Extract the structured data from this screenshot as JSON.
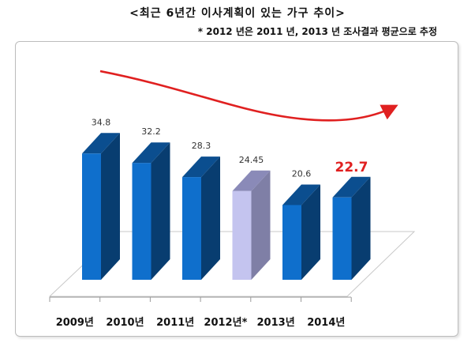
{
  "title": "<최근 6년간 이사계획이 있는 가구 추이>",
  "subtitle": "* 2012 년은 2011 년, 2013 년 조사결과 평균으로 추정",
  "chart_data": {
    "type": "bar",
    "title": "<최근 6년간 이사계획이 있는 가구 추이>",
    "subtitle": "* 2012 년은 2011 년, 2013 년 조사결과 평균으로 추정",
    "categories": [
      "2009년",
      "2010년",
      "2011년",
      "2012년*",
      "2013년",
      "2014년"
    ],
    "values": [
      34.8,
      32.2,
      28.3,
      24.45,
      20.6,
      22.7
    ],
    "labels": [
      "34.8",
      "32.2",
      "28.3",
      "24.45",
      "20.6",
      "22.7"
    ],
    "highlight_index": 5,
    "estimated_index": 3,
    "ylim": [
      0,
      40
    ],
    "grid": false,
    "legend": "none",
    "colors": {
      "bar": "#0f6fcc",
      "estimated_bar": "#c4c4ef",
      "highlight_label": "#e02020",
      "trend_arrow": "#e02020"
    },
    "annotation": "trend-arrow"
  }
}
